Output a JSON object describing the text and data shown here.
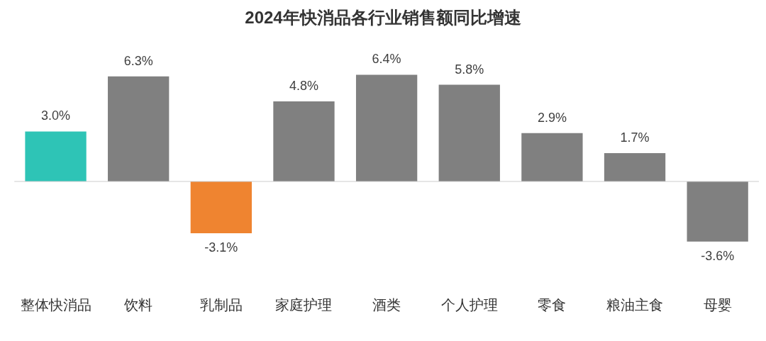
{
  "chart_data": {
    "type": "bar",
    "title": "2024年快消品各行业销售额同比增速",
    "categories": [
      "整体快消品",
      "饮料",
      "乳制品",
      "家庭护理",
      "酒类",
      "个人护理",
      "零食",
      "粮油主食",
      "母婴"
    ],
    "values": [
      3.0,
      6.3,
      -3.1,
      4.8,
      6.4,
      5.8,
      2.9,
      1.7,
      -3.6
    ],
    "colors": [
      "#2ec4b6",
      "#808080",
      "#ef8430",
      "#808080",
      "#808080",
      "#808080",
      "#808080",
      "#808080",
      "#808080"
    ],
    "value_labels": [
      "3.0%",
      "6.3%",
      "-3.1%",
      "4.8%",
      "6.4%",
      "5.8%",
      "2.9%",
      "1.7%",
      "-3.6%"
    ],
    "tick_labels": "x",
    "grid": false,
    "legend": false
  }
}
